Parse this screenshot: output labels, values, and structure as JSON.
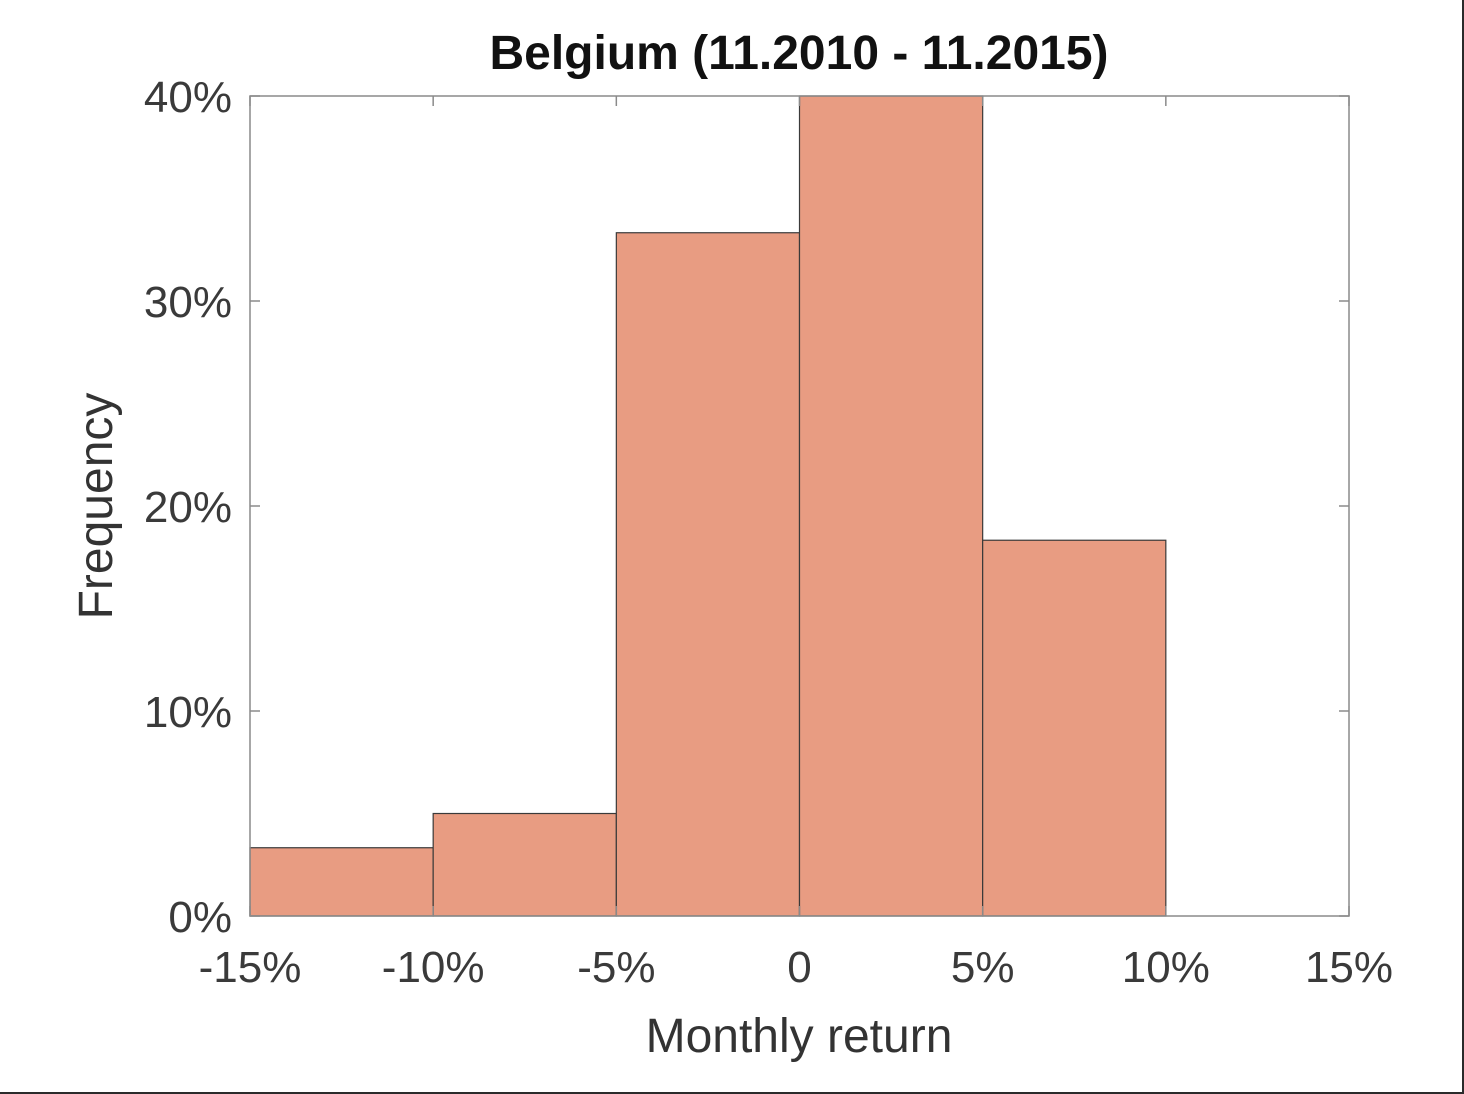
{
  "chart_data": {
    "type": "bar",
    "title": "Belgium (11.2010 - 11.2015)",
    "xlabel": "Monthly return",
    "ylabel": "Frequency",
    "bins": [
      {
        "from": -15,
        "to": -10,
        "value": 3.33
      },
      {
        "from": -10,
        "to": -5,
        "value": 5.0
      },
      {
        "from": -5,
        "to": 0,
        "value": 33.33
      },
      {
        "from": 0,
        "to": 5,
        "value": 40.0
      },
      {
        "from": 5,
        "to": 10,
        "value": 18.33
      }
    ],
    "xlim": [
      -15,
      15
    ],
    "ylim": [
      0,
      40
    ],
    "xticks": [
      {
        "value": -15,
        "label": "-15%"
      },
      {
        "value": -10,
        "label": "-10%"
      },
      {
        "value": -5,
        "label": "-5%"
      },
      {
        "value": 0,
        "label": "0"
      },
      {
        "value": 5,
        "label": "5%"
      },
      {
        "value": 10,
        "label": "10%"
      },
      {
        "value": 15,
        "label": "15%"
      }
    ],
    "yticks": [
      {
        "value": 0,
        "label": "0%"
      },
      {
        "value": 10,
        "label": "10%"
      },
      {
        "value": 20,
        "label": "20%"
      },
      {
        "value": 30,
        "label": "30%"
      },
      {
        "value": 40,
        "label": "40%"
      }
    ],
    "grid": false,
    "bar_color": "#E89C82",
    "bar_edge_color": "#3a3a3a"
  }
}
